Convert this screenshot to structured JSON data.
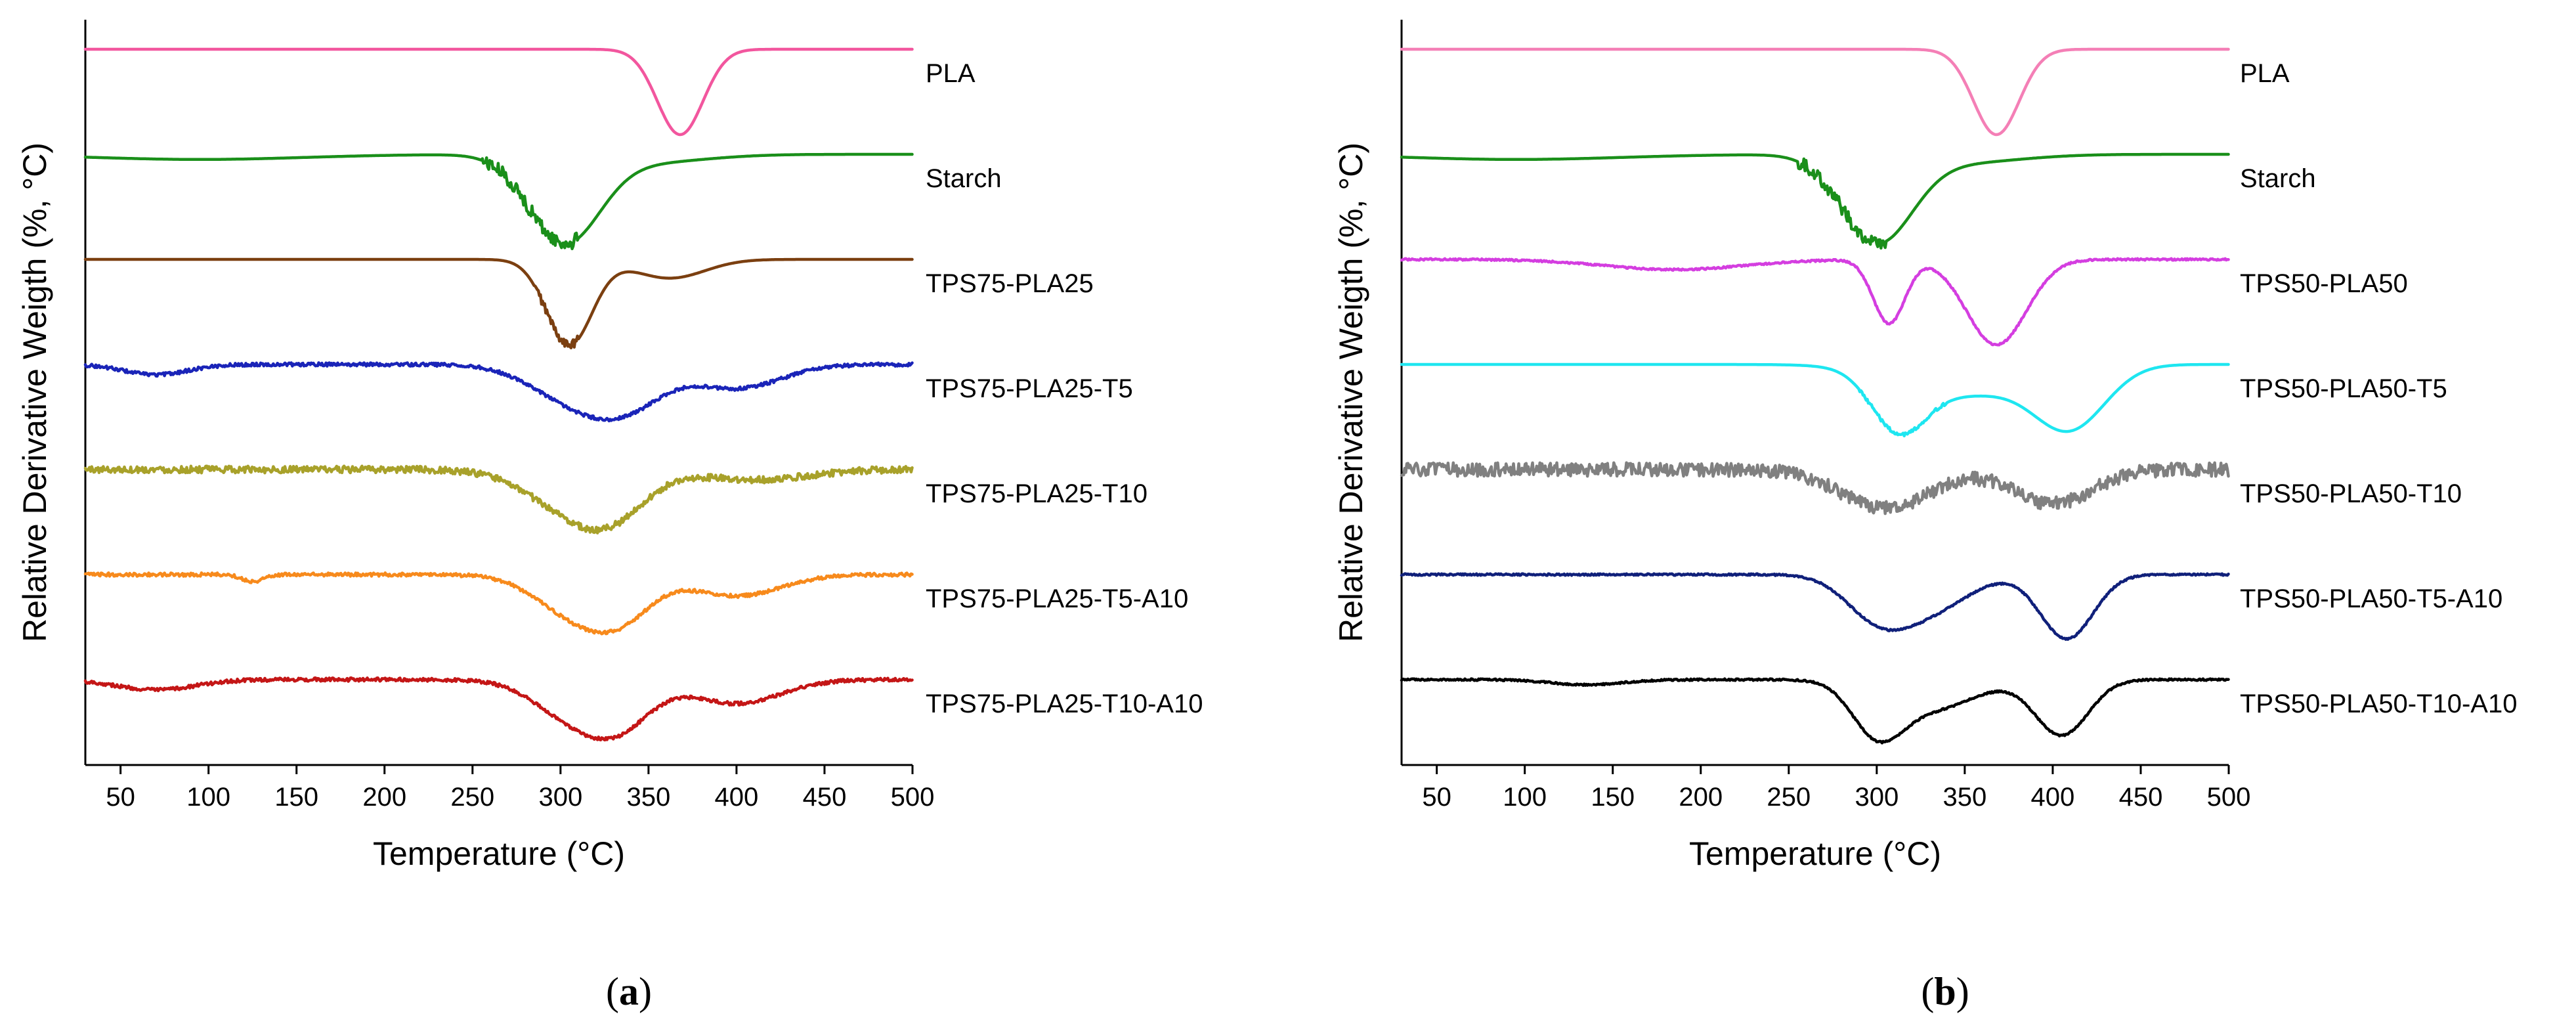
{
  "chart_data": [
    {
      "type": "line",
      "panel_label_prefix": "(",
      "panel_label": "a",
      "panel_label_suffix": ")",
      "xlabel": "Temperature (°C)",
      "ylabel": "Relative Derivative Weigth (%, °C)",
      "xlim": [
        30,
        500
      ],
      "x_ticks": [
        50,
        100,
        150,
        200,
        250,
        300,
        350,
        400,
        450,
        500
      ],
      "y_ticks_shown": false,
      "note": "Curves are vertically offset (stacked) for clarity; y values are relative.",
      "series": [
        {
          "name": "PLA",
          "color": "#f2569e",
          "noise": 0,
          "baseline": 0,
          "dips": [
            {
              "center": 368,
              "depth": 1.0,
              "width": 13
            }
          ]
        },
        {
          "name": "Starch",
          "color": "#1a8f1a",
          "noise": 0.08,
          "noise_range": [
            255,
            310
          ],
          "baseline": 0,
          "dips": [
            {
              "center": 302,
              "depth": 1.0,
              "width": 20
            },
            {
              "center": 345,
              "depth": 0.1,
              "width": 35
            },
            {
              "center": 95,
              "depth": 0.06,
              "width": 60
            }
          ]
        },
        {
          "name": "TPS75-PLA25",
          "color": "#7b3f10",
          "noise": 0.05,
          "noise_range": [
            285,
            310
          ],
          "baseline": 0,
          "dips": [
            {
              "center": 305,
              "depth": 1.0,
              "width": 13
            },
            {
              "center": 362,
              "depth": 0.22,
              "width": 20
            }
          ]
        },
        {
          "name": "TPS75-PLA25-T5",
          "color": "#1a24b8",
          "noise": 0.02,
          "noise_range": [
            30,
            500
          ],
          "baseline": 0,
          "dips": [
            {
              "center": 310,
              "depth": 0.45,
              "width": 25
            },
            {
              "center": 340,
              "depth": 0.35,
              "width": 20
            },
            {
              "center": 400,
              "depth": 0.28,
              "width": 25
            },
            {
              "center": 70,
              "depth": 0.12,
              "width": 18
            }
          ]
        },
        {
          "name": "TPS75-PLA25-T10",
          "color": "#a8a12a",
          "noise": 0.04,
          "noise_range": [
            30,
            500
          ],
          "baseline": 0,
          "dips": [
            {
              "center": 305,
              "depth": 0.42,
              "width": 25
            },
            {
              "center": 330,
              "depth": 0.4,
              "width": 20
            },
            {
              "center": 410,
              "depth": 0.12,
              "width": 30
            }
          ]
        },
        {
          "name": "TPS75-PLA25-T5-A10",
          "color": "#f78a1c",
          "noise": 0.02,
          "noise_range": [
            30,
            500
          ],
          "baseline": 0,
          "dips": [
            {
              "center": 308,
              "depth": 0.45,
              "width": 22
            },
            {
              "center": 335,
              "depth": 0.4,
              "width": 18
            },
            {
              "center": 400,
              "depth": 0.25,
              "width": 25
            },
            {
              "center": 125,
              "depth": 0.08,
              "width": 6
            }
          ]
        },
        {
          "name": "TPS75-PLA25-T10-A10",
          "color": "#c41616",
          "noise": 0.02,
          "noise_range": [
            30,
            500
          ],
          "baseline": 0,
          "dips": [
            {
              "center": 308,
              "depth": 0.45,
              "width": 22
            },
            {
              "center": 335,
              "depth": 0.42,
              "width": 18
            },
            {
              "center": 400,
              "depth": 0.28,
              "width": 25
            },
            {
              "center": 70,
              "depth": 0.12,
              "width": 22
            }
          ]
        }
      ]
    },
    {
      "type": "line",
      "panel_label_prefix": "(",
      "panel_label": "b",
      "panel_label_suffix": ")",
      "xlabel": "Temperature (°C)",
      "ylabel": "Relative Derivative Weigth (%, °C)",
      "xlim": [
        30,
        500
      ],
      "x_ticks": [
        50,
        100,
        150,
        200,
        250,
        300,
        350,
        400,
        450,
        500
      ],
      "y_ticks_shown": false,
      "note": "Curves are vertically offset (stacked) for clarity; y values are relative.",
      "series": [
        {
          "name": "PLA",
          "color": "#f47fb6",
          "noise": 0,
          "baseline": 0,
          "dips": [
            {
              "center": 368,
              "depth": 1.0,
              "width": 13
            }
          ]
        },
        {
          "name": "Starch",
          "color": "#1a8f1a",
          "noise": 0.08,
          "noise_range": [
            255,
            305
          ],
          "baseline": 0,
          "dips": [
            {
              "center": 300,
              "depth": 1.0,
              "width": 20
            },
            {
              "center": 345,
              "depth": 0.1,
              "width": 35
            },
            {
              "center": 95,
              "depth": 0.06,
              "width": 60
            }
          ]
        },
        {
          "name": "TPS50-PLA50",
          "color": "#d43ee0",
          "noise": 0.01,
          "noise_range": [
            30,
            500
          ],
          "baseline": 0,
          "dips": [
            {
              "center": 307,
              "depth": 0.75,
              "width": 9
            },
            {
              "center": 368,
              "depth": 1.0,
              "width": 17
            },
            {
              "center": 185,
              "depth": 0.12,
              "width": 40
            }
          ]
        },
        {
          "name": "TPS50-PLA50-T5",
          "color": "#1ee6f0",
          "noise": 0.02,
          "noise_range": [
            290,
            340
          ],
          "baseline": 0,
          "dips": [
            {
              "center": 312,
              "depth": 0.62,
              "width": 15
            },
            {
              "center": 410,
              "depth": 0.7,
              "width": 20
            },
            {
              "center": 350,
              "depth": 0.35,
              "width": 35
            }
          ]
        },
        {
          "name": "TPS50-PLA50-T10",
          "color": "#808080",
          "noise": 0.08,
          "noise_range": [
            30,
            500
          ],
          "baseline": 0,
          "dips": [
            {
              "center": 305,
              "depth": 0.45,
              "width": 25
            },
            {
              "center": 400,
              "depth": 0.4,
              "width": 22
            }
          ]
        },
        {
          "name": "TPS50-PLA50-T5-A10",
          "color": "#10207a",
          "noise": 0.01,
          "noise_range": [
            30,
            500
          ],
          "baseline": 0,
          "dips": [
            {
              "center": 300,
              "depth": 0.45,
              "width": 18
            },
            {
              "center": 330,
              "depth": 0.4,
              "width": 22
            },
            {
              "center": 408,
              "depth": 0.75,
              "width": 15
            }
          ]
        },
        {
          "name": "TPS50-PLA50-T10-A10",
          "color": "#000000",
          "noise": 0.01,
          "noise_range": [
            30,
            500
          ],
          "baseline": 0,
          "dips": [
            {
              "center": 300,
              "depth": 0.55,
              "width": 14
            },
            {
              "center": 330,
              "depth": 0.35,
              "width": 25
            },
            {
              "center": 405,
              "depth": 0.65,
              "width": 15
            },
            {
              "center": 135,
              "depth": 0.06,
              "width": 20
            }
          ]
        }
      ]
    }
  ]
}
